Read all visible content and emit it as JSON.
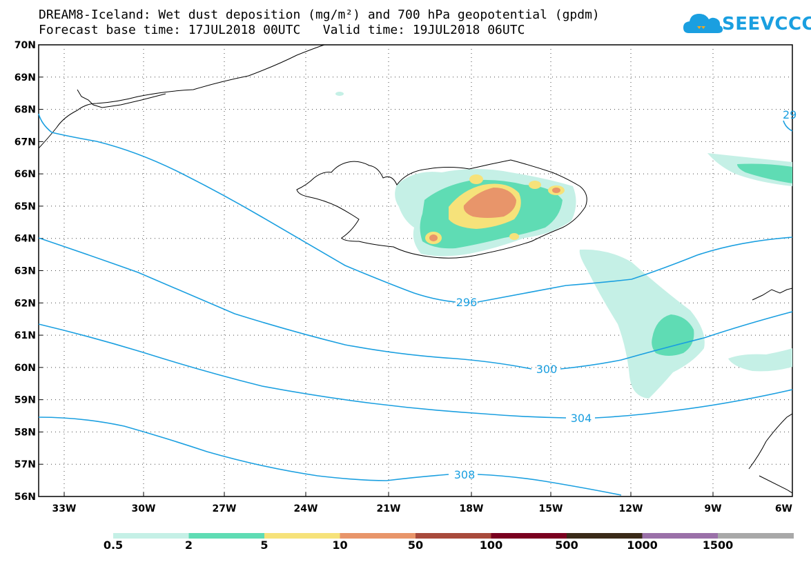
{
  "title": {
    "line1": "DREAM8-Iceland: Wet dust deposition (mg/m²) and 700 hPa geopotential (gpdm)",
    "line2": "Forecast base time: 17JUL2018 00UTC   Valid time: 19JUL2018 06UTC"
  },
  "logo": {
    "text": "SEEVCCC"
  },
  "map": {
    "lat_labels": [
      "70N",
      "69N",
      "68N",
      "67N",
      "66N",
      "65N",
      "64N",
      "63N",
      "62N",
      "61N",
      "60N",
      "59N",
      "58N",
      "57N",
      "56N"
    ],
    "lon_labels": [
      "33W",
      "30W",
      "27W",
      "24W",
      "21W",
      "18W",
      "15W",
      "12W",
      "9W",
      "6W"
    ],
    "contour_labels": [
      "296",
      "300",
      "304",
      "308",
      "29"
    ]
  },
  "legend": {
    "labels": [
      "0.5",
      "2",
      "5",
      "10",
      "50",
      "100",
      "500",
      "1000",
      "1500"
    ],
    "colors": [
      "#c5f0e6",
      "#5fdcb4",
      "#f6e27a",
      "#e8956a",
      "#a84a3c",
      "#7a0020",
      "#3a2a18",
      "#9a70a8",
      "#a8a8a8"
    ]
  }
}
